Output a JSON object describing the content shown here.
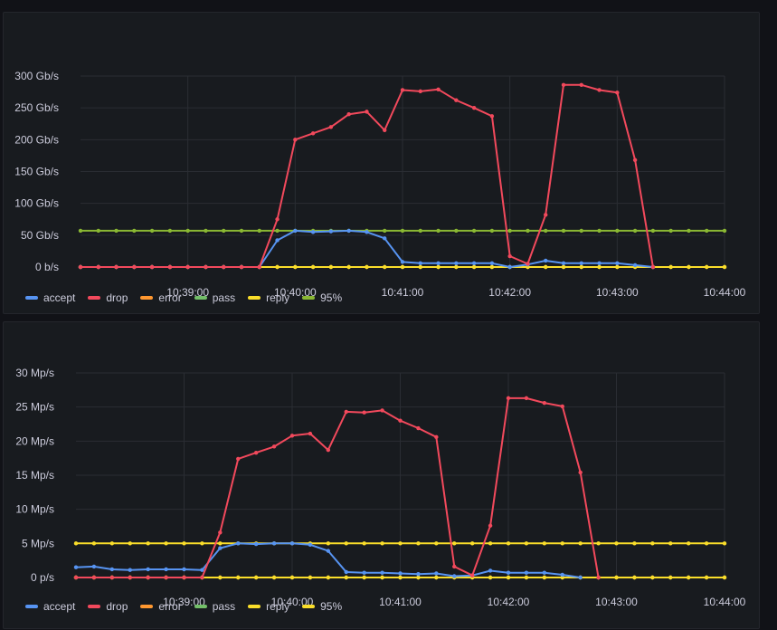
{
  "colors": {
    "accept": "#5794f2",
    "drop": "#f2495c",
    "error": "#ff9830",
    "pass": "#73bf69",
    "reply": "#fade2a",
    "p95_panel1": "#8ab833",
    "p95_panel2": "#fade2a"
  },
  "chart_data": [
    {
      "type": "line",
      "title": "",
      "x": [
        "10:38:00",
        "10:38:10",
        "10:38:20",
        "10:38:30",
        "10:38:40",
        "10:38:50",
        "10:39:00",
        "10:39:10",
        "10:39:20",
        "10:39:30",
        "10:39:40",
        "10:39:50",
        "10:40:00",
        "10:40:10",
        "10:40:20",
        "10:40:30",
        "10:40:40",
        "10:40:50",
        "10:41:00",
        "10:41:10",
        "10:41:20",
        "10:41:30",
        "10:41:40",
        "10:41:50",
        "10:42:00",
        "10:42:10",
        "10:42:20",
        "10:42:30",
        "10:42:40",
        "10:42:50",
        "10:43:00",
        "10:43:10",
        "10:43:20",
        "10:43:30",
        "10:43:40",
        "10:43:50",
        "10:44:00"
      ],
      "x_ticks": [
        "10:39:00",
        "10:40:00",
        "10:41:00",
        "10:42:00",
        "10:43:00",
        "10:44:00"
      ],
      "y_ticks": [
        "0 b/s",
        "50 Gb/s",
        "100 Gb/s",
        "150 Gb/s",
        "200 Gb/s",
        "250 Gb/s",
        "300 Gb/s"
      ],
      "y_unit": "Gb/s",
      "ylim": [
        0,
        300
      ],
      "grid": true,
      "legend_position": "bottom-left",
      "series": [
        {
          "name": "accept",
          "values": [
            0,
            0,
            0,
            0,
            0,
            0,
            0,
            0,
            0,
            0,
            0,
            42,
            57,
            55,
            56,
            57,
            55,
            45,
            8,
            6,
            6,
            6,
            6,
            6,
            0,
            4,
            10,
            6,
            6,
            6,
            6,
            3,
            0,
            null,
            null,
            null,
            null
          ]
        },
        {
          "name": "drop",
          "values": [
            0,
            0,
            0,
            0,
            0,
            0,
            0,
            0,
            0,
            0,
            0,
            75,
            200,
            210,
            220,
            240,
            244,
            215,
            278,
            276,
            279,
            262,
            250,
            237,
            17,
            5,
            82,
            286,
            286,
            278,
            274,
            168,
            0,
            null,
            null,
            null,
            null
          ]
        },
        {
          "name": "error",
          "values": [
            0,
            0,
            0,
            0,
            0,
            0,
            0,
            0,
            0,
            0,
            0,
            0,
            0,
            0,
            0,
            0,
            0,
            0,
            0,
            0,
            0,
            0,
            0,
            0,
            0,
            0,
            0,
            0,
            0,
            0,
            0,
            0,
            0,
            0,
            0,
            0,
            0
          ]
        },
        {
          "name": "pass",
          "values": [
            0,
            0,
            0,
            0,
            0,
            0,
            0,
            0,
            0,
            0,
            0,
            0,
            0,
            0,
            0,
            0,
            0,
            0,
            0,
            0,
            0,
            0,
            0,
            0,
            0,
            0,
            0,
            0,
            0,
            0,
            0,
            0,
            0,
            0,
            0,
            0,
            0
          ]
        },
        {
          "name": "reply",
          "values": [
            0,
            0,
            0,
            0,
            0,
            0,
            0,
            0,
            0,
            0,
            0,
            0,
            0,
            0,
            0,
            0,
            0,
            0,
            0,
            0,
            0,
            0,
            0,
            0,
            0,
            0,
            0,
            0,
            0,
            0,
            0,
            0,
            0,
            0,
            0,
            0,
            0
          ]
        },
        {
          "name": "95%",
          "values": [
            57,
            57,
            57,
            57,
            57,
            57,
            57,
            57,
            57,
            57,
            57,
            57,
            57,
            57,
            57,
            57,
            57,
            57,
            57,
            57,
            57,
            57,
            57,
            57,
            57,
            57,
            57,
            57,
            57,
            57,
            57,
            57,
            57,
            57,
            57,
            57,
            57
          ]
        }
      ]
    },
    {
      "type": "line",
      "title": "",
      "x": [
        "10:38:00",
        "10:38:10",
        "10:38:20",
        "10:38:30",
        "10:38:40",
        "10:38:50",
        "10:39:00",
        "10:39:10",
        "10:39:20",
        "10:39:30",
        "10:39:40",
        "10:39:50",
        "10:40:00",
        "10:40:10",
        "10:40:20",
        "10:40:30",
        "10:40:40",
        "10:40:50",
        "10:41:00",
        "10:41:10",
        "10:41:20",
        "10:41:30",
        "10:41:40",
        "10:41:50",
        "10:42:00",
        "10:42:10",
        "10:42:20",
        "10:42:30",
        "10:42:40",
        "10:42:50",
        "10:43:00",
        "10:43:10",
        "10:43:20",
        "10:43:30",
        "10:43:40",
        "10:43:50",
        "10:44:00"
      ],
      "x_ticks": [
        "10:39:00",
        "10:40:00",
        "10:41:00",
        "10:42:00",
        "10:43:00",
        "10:44:00"
      ],
      "y_ticks": [
        "0 p/s",
        "5 Mp/s",
        "10 Mp/s",
        "15 Mp/s",
        "20 Mp/s",
        "25 Mp/s",
        "30 Mp/s"
      ],
      "y_unit": "Mp/s",
      "ylim": [
        0,
        30
      ],
      "grid": true,
      "legend_position": "bottom-left",
      "series": [
        {
          "name": "accept",
          "values": [
            1.5,
            1.6,
            1.2,
            1.1,
            1.2,
            1.2,
            1.2,
            1.1,
            4.3,
            5.0,
            4.9,
            5.0,
            5.0,
            4.8,
            3.9,
            0.8,
            0.7,
            0.7,
            0.6,
            0.5,
            0.6,
            0.2,
            0.3,
            1.0,
            0.7,
            0.7,
            0.7,
            0.4,
            0,
            null,
            null,
            null,
            null,
            null,
            null,
            null,
            null
          ]
        },
        {
          "name": "drop",
          "values": [
            0,
            0,
            0,
            0,
            0,
            0,
            0,
            0,
            6.6,
            17.4,
            18.3,
            19.2,
            20.8,
            21.1,
            18.7,
            24.3,
            24.2,
            24.5,
            23.0,
            21.9,
            20.6,
            1.6,
            0.3,
            7.6,
            26.3,
            26.3,
            25.6,
            25.1,
            15.4,
            0,
            null,
            null,
            null,
            null,
            null,
            null,
            null
          ]
        },
        {
          "name": "error",
          "values": [
            0,
            0,
            0,
            0,
            0,
            0,
            0,
            0,
            0,
            0,
            0,
            0,
            0,
            0,
            0,
            0,
            0,
            0,
            0,
            0,
            0,
            0,
            0,
            0,
            0,
            0,
            0,
            0,
            0,
            0,
            0,
            0,
            0,
            0,
            0,
            0,
            0
          ]
        },
        {
          "name": "pass",
          "values": [
            0,
            0,
            0,
            0,
            0,
            0,
            0,
            0,
            0,
            0,
            0,
            0,
            0,
            0,
            0,
            0,
            0,
            0,
            0,
            0,
            0,
            0,
            0,
            0,
            0,
            0,
            0,
            0,
            0,
            0,
            0,
            0,
            0,
            0,
            0,
            0,
            0
          ]
        },
        {
          "name": "reply",
          "values": [
            0,
            0,
            0,
            0,
            0,
            0,
            0,
            0,
            0,
            0,
            0,
            0,
            0,
            0,
            0,
            0,
            0,
            0,
            0,
            0,
            0,
            0,
            0,
            0,
            0,
            0,
            0,
            0,
            0,
            0,
            0,
            0,
            0,
            0,
            0,
            0,
            0
          ]
        },
        {
          "name": "95%",
          "values": [
            5,
            5,
            5,
            5,
            5,
            5,
            5,
            5,
            5,
            5,
            5,
            5,
            5,
            5,
            5,
            5,
            5,
            5,
            5,
            5,
            5,
            5,
            5,
            5,
            5,
            5,
            5,
            5,
            5,
            5,
            5,
            5,
            5,
            5,
            5,
            5,
            5
          ]
        }
      ]
    }
  ],
  "legend": {
    "items": [
      {
        "label": "accept",
        "color_key": "accept"
      },
      {
        "label": "drop",
        "color_key": "drop"
      },
      {
        "label": "error",
        "color_key": "error"
      },
      {
        "label": "pass",
        "color_key": "pass"
      },
      {
        "label": "reply",
        "color_key": "reply"
      },
      {
        "label": "95%",
        "color_key": "p95"
      }
    ]
  }
}
